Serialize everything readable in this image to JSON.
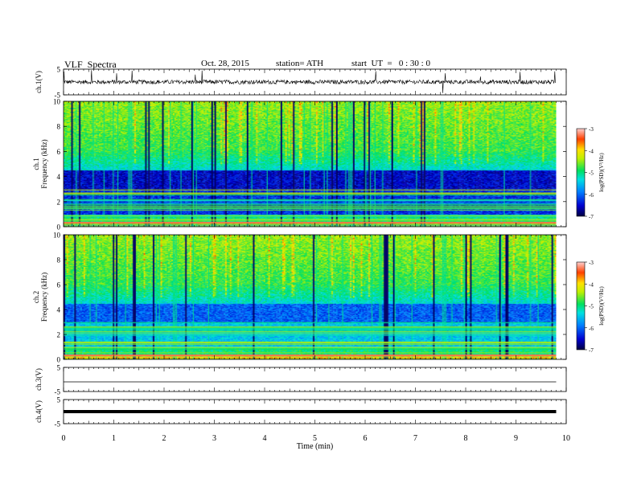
{
  "header": {
    "title": "VLF  Spectra",
    "date": "Oct. 28, 2015",
    "station": "station= ATH",
    "start": "start  UT  =   0 : 30 : 0"
  },
  "chart_data": [
    {
      "type": "line",
      "ylabel": "ch.1(V)",
      "ylim": [
        -5,
        5
      ],
      "yticklabels": [
        "5",
        "-5"
      ],
      "x_range": [
        0,
        9.8
      ],
      "description_values": {
        "baseline": 0,
        "spike_max": 5,
        "spike_min": -5
      }
    },
    {
      "type": "heatmap",
      "ylabel_top": "ch.1",
      "ylabel": "Frequency  (kHz)",
      "ylim": [
        0,
        10
      ],
      "yticklabels": [
        "0",
        "2",
        "4",
        "6",
        "8",
        "10"
      ],
      "x_range": [
        0,
        9.8
      ],
      "colorbar": {
        "label": "log(PSD)(V²/Hz)",
        "range": [
          -7,
          -3
        ],
        "ticks": [
          "-3",
          "-4",
          "-5",
          "-6",
          "-7"
        ]
      }
    },
    {
      "type": "heatmap",
      "ylabel_top": "ch.2",
      "ylabel": "Frequency  (kHz)",
      "ylim": [
        0,
        10
      ],
      "yticklabels": [
        "0",
        "2",
        "4",
        "6",
        "8",
        "10"
      ],
      "x_range": [
        0,
        9.8
      ],
      "colorbar": {
        "label": "log(PSD)(V²/Hz)",
        "range": [
          -7,
          -3
        ],
        "ticks": [
          "-3",
          "-4",
          "-5",
          "-6",
          "-7"
        ]
      }
    },
    {
      "type": "line",
      "ylabel": "ch.3(V)",
      "ylim": [
        -5,
        5
      ],
      "yticklabels": [
        "5",
        "-5"
      ],
      "x_range": [
        0,
        9.8
      ],
      "values_constant": -1
    },
    {
      "type": "line",
      "ylabel": "ch.4(V)",
      "ylim": [
        -5,
        5
      ],
      "yticklabels": [
        "5",
        "-5"
      ],
      "x_range": [
        0,
        9.8
      ],
      "values_constant": 0
    }
  ],
  "xaxis": {
    "label": "Time  (min)",
    "xlim": [
      0,
      10
    ],
    "ticks": [
      "0",
      "1",
      "2",
      "3",
      "4",
      "5",
      "6",
      "7",
      "8",
      "9",
      "10"
    ]
  }
}
